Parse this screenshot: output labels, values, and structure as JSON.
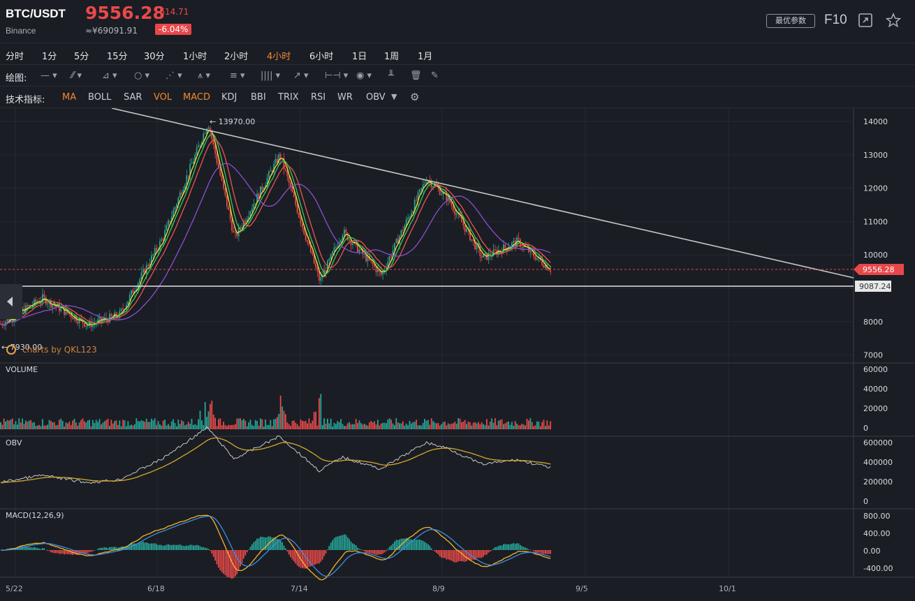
{
  "header": {
    "pair": "BTC/USDT",
    "exchange": "Binance",
    "price": "9556.28",
    "cny_price": "≈¥69091.91",
    "change": "-614.71",
    "change_pct": "-6.04%",
    "best_params_label": "最优参数",
    "f10_label": "F10",
    "icons": [
      "fullscreen-icon",
      "star-icon"
    ]
  },
  "timeframes": {
    "items": [
      "分时",
      "1分",
      "5分",
      "15分",
      "30分",
      "1小时",
      "2小时",
      "4小时",
      "6小时",
      "1日",
      "1周",
      "1月"
    ],
    "active": "4小时"
  },
  "drawing": {
    "label": "绘图:",
    "tools": [
      "line-tool-icon",
      "pen-tool-icon",
      "polyline-tool-icon",
      "circle-tool-icon",
      "zigzag-tool-icon",
      "pattern-tool-icon",
      "fib-tool-icon",
      "channel-tool-icon",
      "arrow-tool-icon",
      "measure-tool-icon",
      "comment-tool-icon",
      "bars-tool-icon",
      "trash-icon",
      "brush-icon"
    ]
  },
  "indicators": {
    "label": "技术指标:",
    "items": [
      "MA",
      "BOLL",
      "SAR",
      "VOL",
      "MACD",
      "KDJ",
      "BBI",
      "TRIX",
      "RSI",
      "WR",
      "OBV"
    ],
    "active": [
      "MA",
      "VOL",
      "MACD"
    ]
  },
  "price_chart": {
    "high_annotation": "← 13970.00",
    "low_annotation": "← 7930.00",
    "watermark": "charts by QKL123",
    "current_price_tag": "9556.28",
    "support_tag": "9087.24",
    "y_ticks": [
      "14000",
      "13000",
      "12000",
      "11000",
      "10000",
      "8000",
      "7000"
    ]
  },
  "volume_chart": {
    "label": "VOLUME",
    "y_ticks": [
      "60000",
      "40000",
      "20000",
      "0"
    ]
  },
  "obv_chart": {
    "label": "OBV",
    "y_ticks": [
      "600000",
      "400000",
      "200000",
      "0"
    ]
  },
  "macd_chart": {
    "label": "MACD(12,26,9)",
    "y_ticks": [
      "800.00",
      "400.00",
      "0.00",
      "-400.00"
    ]
  },
  "x_axis": {
    "ticks": [
      "5/22",
      "6/18",
      "7/14",
      "8/9",
      "9/5",
      "10/1"
    ]
  },
  "colors": {
    "up": "#26a69a",
    "down": "#e84a4a",
    "ma1": "#f5e23b",
    "ma2": "#38c95a",
    "ma3": "#f05252",
    "ma4": "#8a4fd6",
    "trendline": "#c8c8c8",
    "obv": "#c8c8c8",
    "obv_ma": "#d4a82a",
    "macd_dif": "#f5b52e",
    "macd_dea": "#3b8fe0",
    "accent": "#f08a2e"
  },
  "chart_data": {
    "type": "line",
    "x": [
      "5/22",
      "6/1",
      "6/10",
      "6/18",
      "6/22",
      "6/26",
      "7/1",
      "7/7",
      "7/14",
      "7/20",
      "7/28",
      "8/4",
      "8/9",
      "8/15",
      "8/22",
      "8/28"
    ],
    "series": [
      {
        "values": [
          7930,
          8700,
          7900,
          8200,
          10500,
          13970,
          10500,
          13000,
          9200,
          10700,
          9400,
          12300,
          11700,
          9900,
          10400,
          9556
        ]
      }
    ],
    "ylim": [
      7000,
      14200
    ]
  }
}
